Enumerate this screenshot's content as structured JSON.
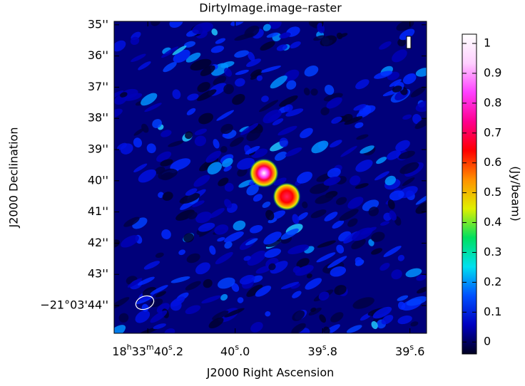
{
  "chart_data": {
    "type": "image",
    "title": "DirtyImage.image–raster",
    "x_label": "J2000 Right Ascension",
    "y_label": "J2000 Declination",
    "xlim": [
      40.277,
      39.562
    ],
    "xticks": [
      {
        "value": 40.2,
        "label": [
          "18",
          "h",
          "33",
          "m",
          "40",
          "s",
          ".2"
        ]
      },
      {
        "value": 40.0,
        "label": [
          "40",
          "s",
          ".0"
        ]
      },
      {
        "value": 39.8,
        "label": [
          "39",
          "s",
          ".8"
        ]
      },
      {
        "value": 39.6,
        "label": [
          "39",
          "s",
          ".6"
        ]
      }
    ],
    "ylim": [
      34.89,
      44.89
    ],
    "yticks": [
      {
        "value": 35,
        "label": "35''"
      },
      {
        "value": 36,
        "label": "36''"
      },
      {
        "value": 37,
        "label": "37''"
      },
      {
        "value": 38,
        "label": "38''"
      },
      {
        "value": 39,
        "label": "39''"
      },
      {
        "value": 40,
        "label": "40''"
      },
      {
        "value": 41,
        "label": "41''"
      },
      {
        "value": 42,
        "label": "42''"
      },
      {
        "value": 43,
        "label": "43''"
      },
      {
        "value": {
          "value": 44,
          "label": "−21°03'44''"
        },
        "label": "−21°03'44''"
      }
    ],
    "colorbar": {
      "label": "(Jy/beam)",
      "lim": [
        -0.04,
        1.031
      ],
      "ticks": [
        0,
        0.1,
        0.2,
        0.3,
        0.4,
        0.5,
        0.6,
        0.7,
        0.8,
        0.9,
        1
      ],
      "colormap": [
        "#000020",
        "#0000c0",
        "#0050ff",
        "#00e0f0",
        "#00e060",
        "#e0f000",
        "#ff9000",
        "#ff0000",
        "#ff0090",
        "#ff40ff",
        "#ffd0ff",
        "#ffffff"
      ]
    }
  }
}
